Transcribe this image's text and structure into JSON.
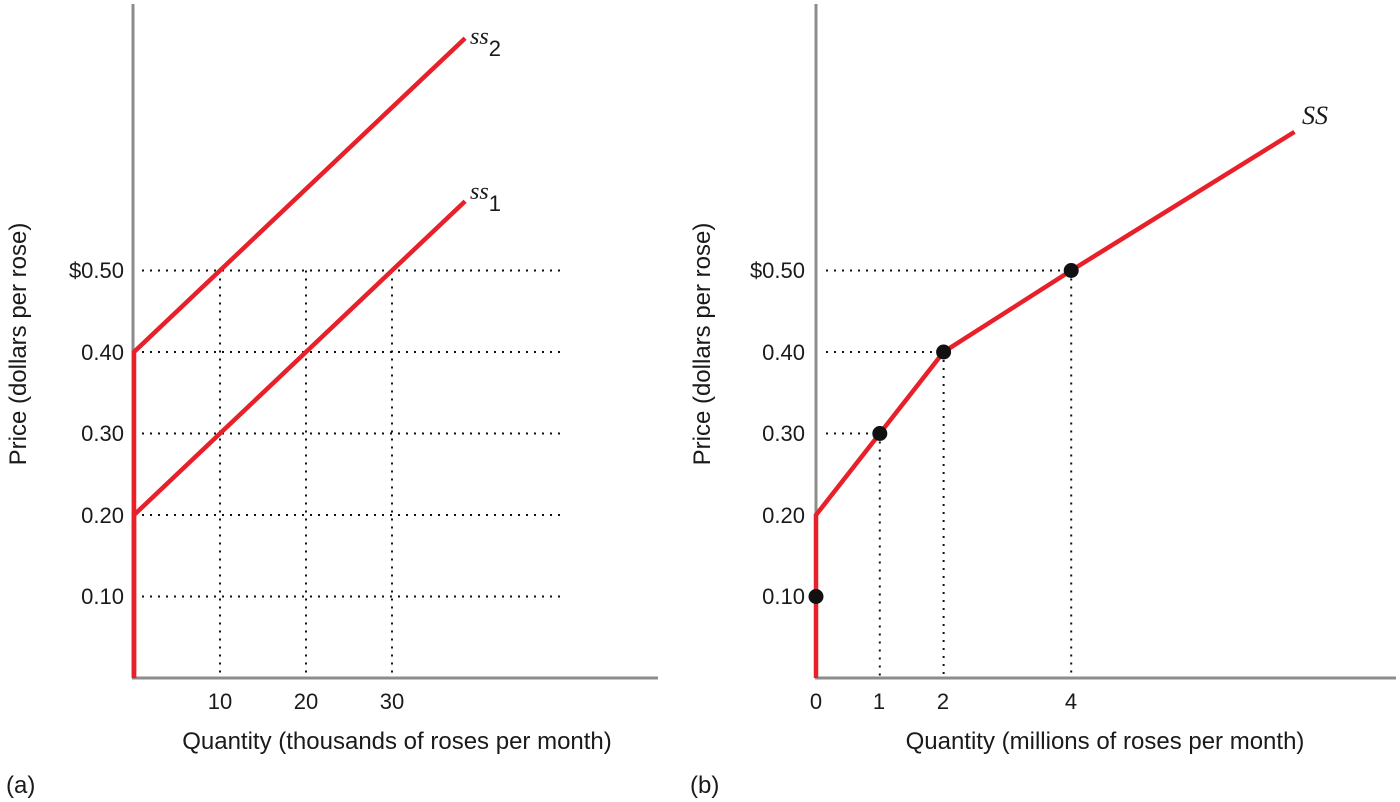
{
  "chart_data": [
    {
      "type": "line",
      "panel_label": "(a)",
      "xlabel": "Quantity (thousands of roses per month)",
      "ylabel": "Price (dollars per rose)",
      "x_ticks": [
        "10",
        "20",
        "30"
      ],
      "y_ticks": [
        "0.10",
        "0.20",
        "0.30",
        "0.40",
        "$0.50"
      ],
      "grid": "dotted guide lines at prices 0.10–0.50 and quantities 10, 20, 30",
      "series": [
        {
          "name": "ss1",
          "label_main": "ss",
          "label_sub": "1",
          "color": "#e8202a",
          "points": [
            {
              "x": 0,
              "y": 0
            },
            {
              "x": 0,
              "y": 0.2
            },
            {
              "x": 10,
              "y": 0.3
            },
            {
              "x": 20,
              "y": 0.4
            },
            {
              "x": 30,
              "y": 0.5
            },
            {
              "x": 38.5,
              "y": 0.585
            }
          ]
        },
        {
          "name": "ss2",
          "label_main": "ss",
          "label_sub": "2",
          "color": "#e8202a",
          "points": [
            {
              "x": 0,
              "y": 0
            },
            {
              "x": 0,
              "y": 0.4
            },
            {
              "x": 10,
              "y": 0.5
            },
            {
              "x": 38.5,
              "y": 0.785
            }
          ]
        }
      ]
    },
    {
      "type": "line",
      "panel_label": "(b)",
      "xlabel": "Quantity (millions of roses per month)",
      "ylabel": "Price (dollars per rose)",
      "x_ticks": [
        "0",
        "1",
        "2",
        "4"
      ],
      "y_ticks": [
        "0.10",
        "0.20",
        "0.30",
        "0.40",
        "$0.50"
      ],
      "grid": "dotted guide lines to marked points",
      "series": [
        {
          "name": "SS",
          "color": "#e8202a",
          "points": [
            {
              "x": 0,
              "y": 0
            },
            {
              "x": 0,
              "y": 0.1
            },
            {
              "x": 0,
              "y": 0.2
            },
            {
              "x": 1,
              "y": 0.3
            },
            {
              "x": 2,
              "y": 0.4
            },
            {
              "x": 4,
              "y": 0.5
            },
            {
              "x": 7.5,
              "y": 0.67
            }
          ],
          "markers": [
            {
              "x": 0,
              "y": 0.1
            },
            {
              "x": 1,
              "y": 0.3
            },
            {
              "x": 2,
              "y": 0.4
            },
            {
              "x": 4,
              "y": 0.5
            }
          ]
        }
      ]
    }
  ]
}
